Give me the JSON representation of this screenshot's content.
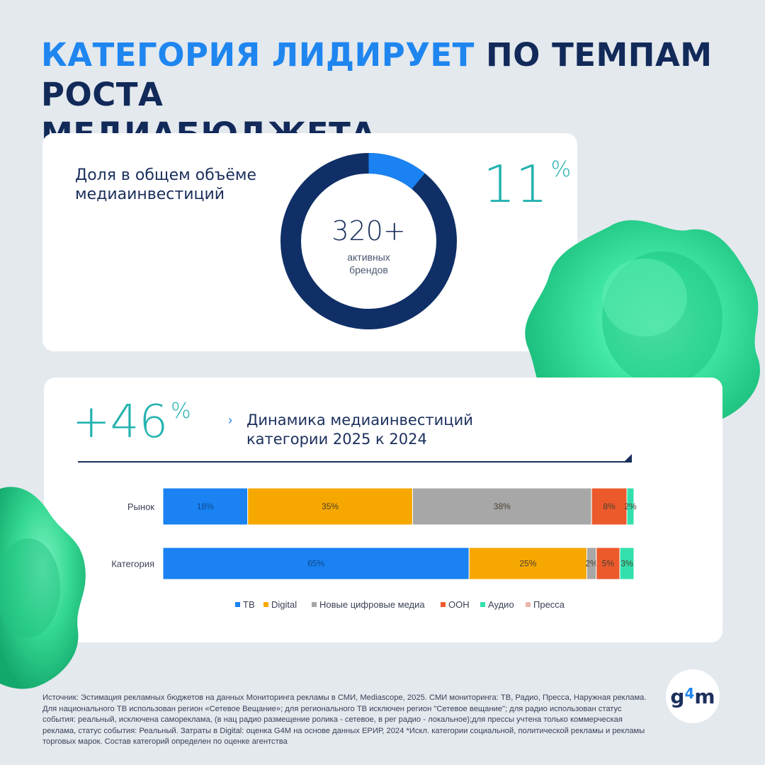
{
  "header": {
    "title_accent": "КАТЕГОРИЯ ЛИДИРУЕТ",
    "title_rest_line1": "ПО ТЕМПАМ РОСТА",
    "title_line2": "МЕДИАБЮДЖЕТА"
  },
  "share_card": {
    "label_line1": "Доля в общем объёме",
    "label_line2": "медиаинвестиций",
    "donut": {
      "share": 0.11,
      "color_share": "#1a82f2",
      "color_rest": "#0f2f66"
    },
    "center_number": "320+",
    "center_caption_line1": "активных",
    "center_caption_line2": "брендов",
    "percent_value": "11",
    "percent_sign": "%"
  },
  "growth_card": {
    "growth_value": "+46",
    "growth_sign": "%",
    "arrow": "›",
    "label_line1": "Динамика медиаинвестиций",
    "label_line2": "категории 2025 к 2024"
  },
  "chart_data": {
    "type": "bar",
    "orientation": "horizontal",
    "stacked": true,
    "categories": [
      "Рынок",
      "Категория"
    ],
    "series": [
      {
        "name": "ТВ",
        "color": "#1a82f2",
        "values": [
          18,
          65
        ],
        "labels": [
          "18%",
          "65%"
        ]
      },
      {
        "name": "Digital",
        "color": "#f7a800",
        "values": [
          35,
          25
        ],
        "labels": [
          "35%",
          "25%"
        ]
      },
      {
        "name": "Новые цифровые медиа",
        "color": "#a7a7a7",
        "values": [
          38,
          2
        ],
        "labels": [
          "38%",
          "2%"
        ]
      },
      {
        "name": "ООН",
        "color": "#ec5a2c",
        "values": [
          7.5,
          5
        ],
        "labels": [
          "8%",
          "5%"
        ]
      },
      {
        "name": "Аудио",
        "color": "#33e0ad",
        "values": [
          1.5,
          3
        ],
        "labels": [
          "2%",
          "3%"
        ]
      },
      {
        "name": "Пресса",
        "color": "#e9b7a8",
        "values": [
          0,
          0
        ],
        "labels": [
          "",
          ""
        ]
      }
    ],
    "xlim": [
      0,
      100
    ],
    "legend_position": "bottom"
  },
  "footer": {
    "source": "Источник: Эстимация рекламных бюджетов на данных Мониторинга рекламы в СМИ, Mediascope, 2025. СМИ мониторинга: ТВ, Радио, Пресса, Наружная реклама. Для национального ТВ использован регион «Сетевое Вещание»; для регионального ТВ исключен регион \"Сетевое вещание\"; для радио использован статус события: реальный, исключена самореклама, (в нац радио размещение ролика - сетевое, в рег радио - локальное);для прессы учтена только коммерческая реклама, статус события: Реальный. Затраты в Digital: оценка G4M на основе данных ЕРИР, 2024 *Искл. категории социальной, политической рекламы и рекламы торговых марок. Состав категорий определен по оценке агентства",
    "logo_left": "g",
    "logo_four": "4",
    "logo_right": "m"
  },
  "colors": {
    "accent_blue": "#1f86f0",
    "navy": "#122a59",
    "teal": "#23b2b0",
    "blob_green": "#2fe39a"
  }
}
